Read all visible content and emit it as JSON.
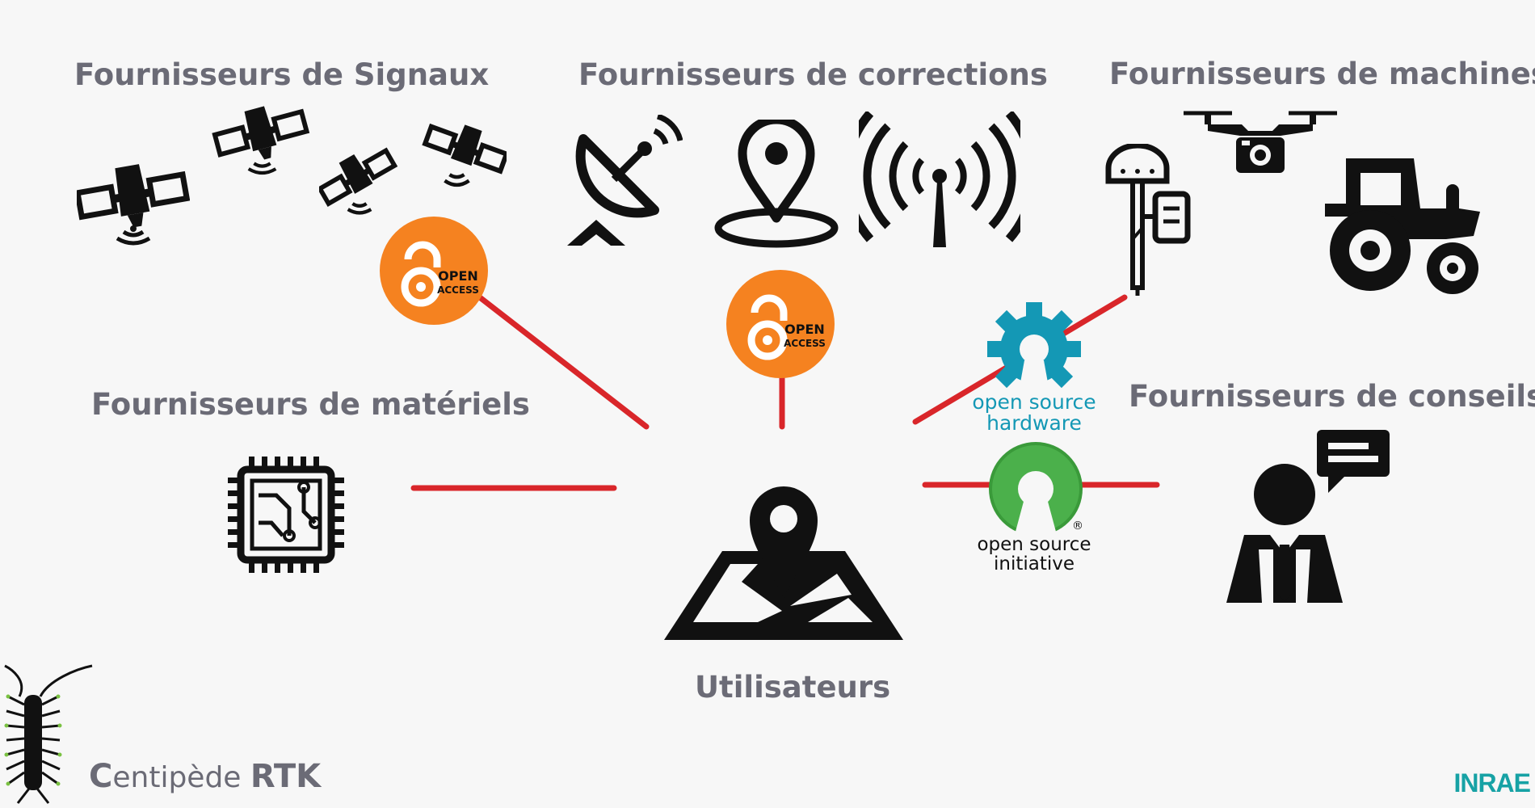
{
  "headings": {
    "signals": "Fournisseurs de Signaux",
    "corrections": "Fournisseurs de corrections",
    "machines": "Fournisseurs de machines",
    "materials": "Fournisseurs de matériels",
    "advice": "Fournisseurs de conseils",
    "users": "Utilisateurs"
  },
  "badges": {
    "open_access_1": {
      "line1": "OPEN",
      "line2": "ACCESS"
    },
    "open_access_2": {
      "line1": "OPEN",
      "line2": "ACCESS"
    },
    "oshw": {
      "line1": "open source",
      "line2": "hardware"
    },
    "osi": {
      "line1": "open source",
      "line2": "initiative",
      "reg": "®"
    }
  },
  "branding": {
    "product_main": "C",
    "product_rest": "entipède ",
    "product_rtk": "RTK",
    "org": "INRAE"
  },
  "icons": [
    "satellite-icon",
    "satellite-dish-icon",
    "location-pin-icon",
    "antenna-icon",
    "gnss-rover-icon",
    "drone-icon",
    "tractor-icon",
    "microchip-icon",
    "map-pin-icon",
    "consultant-icon",
    "centipede-icon"
  ],
  "colors": {
    "connector": "#d9262a",
    "open_access": "#f58220",
    "oshw": "#1498b5",
    "osi": "#3a9a3a",
    "heading": "#6b6b76",
    "inrae": "#17a2a5"
  }
}
